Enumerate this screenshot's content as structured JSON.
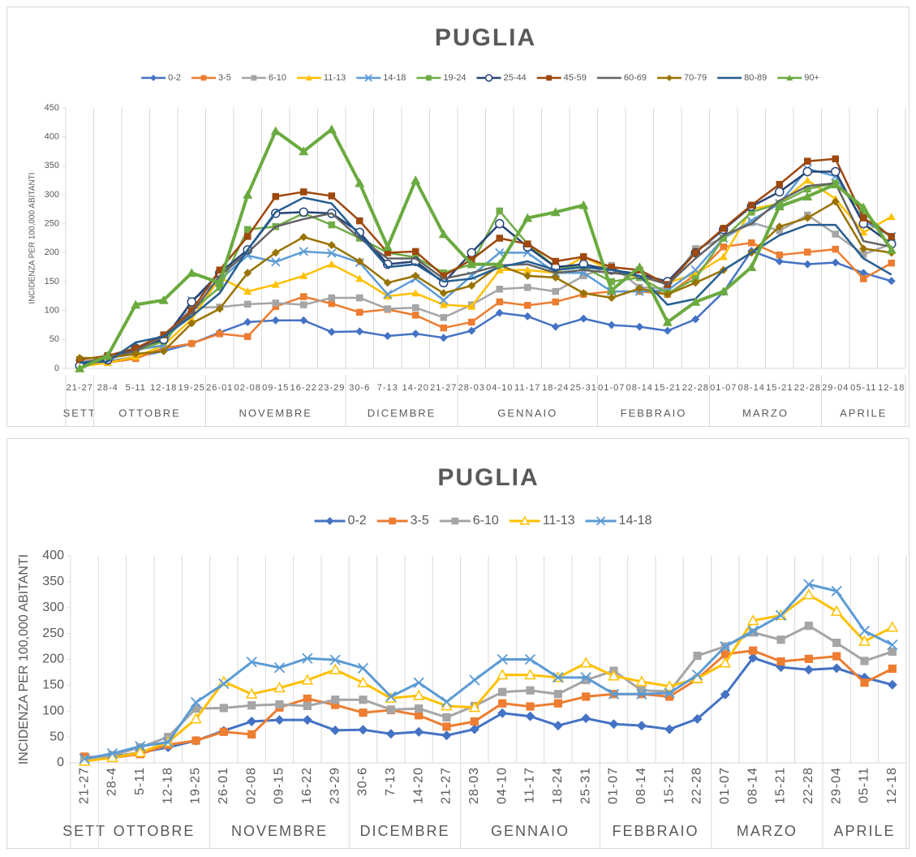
{
  "chart_data": [
    {
      "type": "line",
      "title": "PUGLIA",
      "y_label": "INCIDENZA PER 100,000 ABITANTI",
      "categories": [
        "21-27",
        "28-4",
        "5-11",
        "12-18",
        "19-25",
        "26-01",
        "02-08",
        "09-15",
        "16-22",
        "23-29",
        "30-6",
        "7-13",
        "14-20",
        "21-27",
        "28-03",
        "04-10",
        "11-17",
        "18-24",
        "25-31",
        "01-07",
        "08-14",
        "15-21",
        "22-28",
        "01-07",
        "08-14",
        "15-21",
        "22-28",
        "29-04",
        "05-11",
        "12-18"
      ],
      "months": [
        {
          "label": "SETT",
          "count": 1
        },
        {
          "label": "OTTOBRE",
          "count": 4
        },
        {
          "label": "NOVEMBRE",
          "count": 5
        },
        {
          "label": "DICEMBRE",
          "count": 4
        },
        {
          "label": "GENNAIO",
          "count": 5
        },
        {
          "label": "FEBBRAIO",
          "count": 4
        },
        {
          "label": "MARZO",
          "count": 4
        },
        {
          "label": "APRILE",
          "count": 3
        }
      ],
      "ylim": [
        0,
        450
      ],
      "yticks": [
        0,
        50,
        100,
        150,
        200,
        250,
        300,
        350,
        400,
        450
      ],
      "series": [
        {
          "name": "0-2",
          "color": "#4472c4",
          "marker": "diamond",
          "values": [
            5,
            12,
            20,
            30,
            43,
            62,
            80,
            83,
            83,
            63,
            64,
            56,
            60,
            53,
            65,
            96,
            90,
            72,
            86,
            75,
            72,
            65,
            85,
            132,
            203,
            185,
            180,
            183,
            165,
            151
          ]
        },
        {
          "name": "3-5",
          "color": "#ed7d31",
          "marker": "square",
          "values": [
            12,
            10,
            17,
            35,
            43,
            60,
            55,
            107,
            124,
            112,
            97,
            102,
            92,
            70,
            80,
            115,
            109,
            115,
            128,
            133,
            133,
            128,
            162,
            210,
            217,
            196,
            201,
            206,
            155,
            182
          ]
        },
        {
          "name": "6-10",
          "color": "#a5a5a5",
          "marker": "square",
          "values": [
            5,
            15,
            30,
            50,
            105,
            106,
            111,
            113,
            110,
            122,
            122,
            103,
            105,
            88,
            110,
            137,
            140,
            133,
            160,
            178,
            140,
            138,
            207,
            225,
            252,
            238,
            265,
            232,
            197,
            215
          ]
        },
        {
          "name": "11-13",
          "color": "#ffc000",
          "marker": "triangle",
          "values": [
            3,
            10,
            20,
            40,
            85,
            157,
            133,
            145,
            160,
            180,
            155,
            125,
            130,
            110,
            107,
            170,
            170,
            165,
            193,
            168,
            157,
            148,
            163,
            193,
            275,
            285,
            325,
            293,
            235,
            262
          ]
        },
        {
          "name": "14-18",
          "color": "#5b9bd5",
          "marker": "x",
          "values": [
            8,
            18,
            32,
            40,
            117,
            153,
            195,
            184,
            202,
            199,
            183,
            128,
            155,
            118,
            160,
            200,
            200,
            165,
            165,
            133,
            133,
            135,
            170,
            225,
            255,
            285,
            345,
            332,
            255,
            228
          ]
        },
        {
          "name": "19-24",
          "color": "#70ad47",
          "marker": "square",
          "values": [
            0,
            22,
            30,
            47,
            100,
            140,
            240,
            245,
            268,
            248,
            225,
            200,
            192,
            165,
            180,
            272,
            215,
            175,
            175,
            150,
            157,
            130,
            155,
            225,
            270,
            285,
            310,
            320,
            270,
            225
          ]
        },
        {
          "name": "25-44",
          "color": "#264478",
          "marker": "circle",
          "values": [
            5,
            15,
            35,
            50,
            115,
            165,
            205,
            268,
            270,
            268,
            235,
            180,
            185,
            148,
            200,
            250,
            210,
            175,
            180,
            170,
            163,
            150,
            200,
            240,
            280,
            305,
            340,
            340,
            250,
            215
          ]
        },
        {
          "name": "45-59",
          "color": "#9e480e",
          "marker": "square",
          "values": [
            15,
            22,
            35,
            58,
            100,
            170,
            228,
            297,
            305,
            298,
            255,
            200,
            202,
            160,
            188,
            225,
            215,
            185,
            193,
            175,
            170,
            145,
            200,
            242,
            282,
            318,
            358,
            362,
            260,
            228
          ]
        },
        {
          "name": "60-69",
          "color": "#636363",
          "marker": "none",
          "values": [
            10,
            18,
            30,
            55,
            95,
            160,
            200,
            245,
            258,
            268,
            225,
            190,
            190,
            155,
            165,
            178,
            180,
            165,
            170,
            165,
            160,
            145,
            190,
            230,
            250,
            290,
            315,
            320,
            220,
            210
          ]
        },
        {
          "name": "70-79",
          "color": "#997300",
          "marker": "diamond",
          "values": [
            18,
            18,
            25,
            30,
            78,
            103,
            165,
            200,
            227,
            213,
            185,
            148,
            160,
            130,
            143,
            178,
            160,
            157,
            130,
            122,
            138,
            128,
            148,
            170,
            200,
            245,
            260,
            288,
            207,
            200
          ]
        },
        {
          "name": "80-89",
          "color": "#255e91",
          "marker": "none",
          "values": [
            10,
            12,
            45,
            55,
            90,
            130,
            205,
            270,
            295,
            285,
            230,
            175,
            180,
            150,
            155,
            175,
            185,
            170,
            175,
            170,
            160,
            110,
            120,
            170,
            200,
            230,
            248,
            248,
            190,
            162
          ]
        },
        {
          "name": "90+",
          "color": "#6aaa3f",
          "marker": "triangle",
          "values": [
            0,
            22,
            110,
            118,
            165,
            148,
            300,
            410,
            375,
            413,
            320,
            210,
            325,
            232,
            180,
            180,
            260,
            270,
            282,
            135,
            175,
            80,
            115,
            133,
            175,
            280,
            297,
            318,
            278,
            205
          ]
        }
      ]
    },
    {
      "type": "line",
      "title": "PUGLIA",
      "y_label": "INCIDENZA PER 100,000 ABITANTI",
      "categories": [
        "21-27",
        "28-4",
        "5-11",
        "12-18",
        "19-25",
        "26-01",
        "02-08",
        "09-15",
        "16-22",
        "23-29",
        "30-6",
        "7-13",
        "14-20",
        "21-27",
        "28-03",
        "04-10",
        "11-17",
        "18-24",
        "25-31",
        "01-07",
        "08-14",
        "15-21",
        "22-28",
        "01-07",
        "08-14",
        "15-21",
        "22-28",
        "29-04",
        "05-11",
        "12-18"
      ],
      "months": [
        {
          "label": "SETT",
          "count": 1
        },
        {
          "label": "OTTOBRE",
          "count": 4
        },
        {
          "label": "NOVEMBRE",
          "count": 5
        },
        {
          "label": "DICEMBRE",
          "count": 4
        },
        {
          "label": "GENNAIO",
          "count": 5
        },
        {
          "label": "FEBBRAIO",
          "count": 4
        },
        {
          "label": "MARZO",
          "count": 4
        },
        {
          "label": "APRILE",
          "count": 3
        }
      ],
      "ylim": [
        0,
        400
      ],
      "yticks": [
        0,
        50,
        100,
        150,
        200,
        250,
        300,
        350,
        400
      ],
      "series": [
        {
          "name": "0-2",
          "color": "#4472c4",
          "marker": "diamond",
          "values": [
            5,
            12,
            20,
            30,
            43,
            62,
            80,
            83,
            83,
            63,
            64,
            56,
            60,
            53,
            65,
            96,
            90,
            72,
            86,
            75,
            72,
            65,
            85,
            132,
            203,
            185,
            180,
            183,
            165,
            151
          ]
        },
        {
          "name": "3-5",
          "color": "#ed7d31",
          "marker": "square",
          "values": [
            12,
            10,
            17,
            35,
            43,
            60,
            55,
            107,
            124,
            112,
            97,
            102,
            92,
            70,
            80,
            115,
            109,
            115,
            128,
            133,
            133,
            128,
            162,
            210,
            217,
            196,
            201,
            206,
            155,
            182
          ]
        },
        {
          "name": "6-10",
          "color": "#a5a5a5",
          "marker": "square",
          "values": [
            5,
            15,
            30,
            50,
            105,
            106,
            111,
            113,
            110,
            122,
            122,
            103,
            105,
            88,
            110,
            137,
            140,
            133,
            160,
            178,
            140,
            138,
            207,
            225,
            252,
            238,
            265,
            232,
            197,
            215
          ]
        },
        {
          "name": "11-13",
          "color": "#ffc000",
          "marker": "triangle-open",
          "values": [
            3,
            10,
            20,
            40,
            85,
            157,
            133,
            145,
            160,
            180,
            155,
            125,
            130,
            110,
            107,
            170,
            170,
            165,
            193,
            168,
            157,
            148,
            163,
            193,
            275,
            285,
            325,
            293,
            235,
            262
          ]
        },
        {
          "name": "14-18",
          "color": "#5b9bd5",
          "marker": "x",
          "values": [
            8,
            18,
            32,
            40,
            117,
            153,
            195,
            184,
            202,
            199,
            183,
            128,
            155,
            118,
            160,
            200,
            200,
            165,
            165,
            133,
            133,
            135,
            170,
            225,
            255,
            285,
            345,
            332,
            255,
            228
          ]
        }
      ]
    }
  ]
}
